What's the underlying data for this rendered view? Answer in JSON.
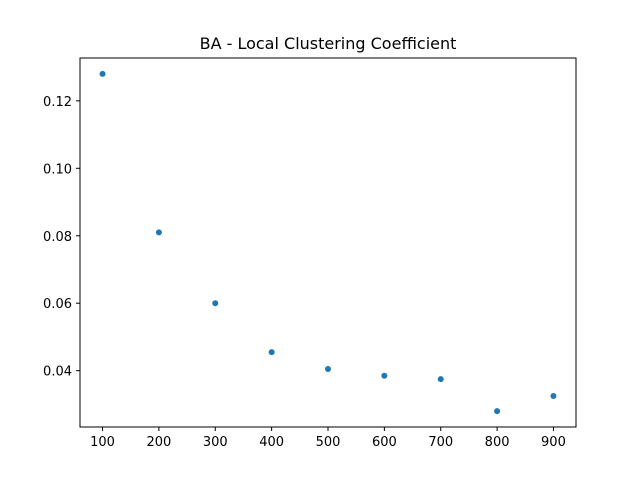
{
  "chart_data": {
    "type": "scatter",
    "title": "BA - Local Clustering Coefficient",
    "xlabel": "",
    "ylabel": "",
    "x": [
      100,
      200,
      300,
      400,
      500,
      600,
      700,
      800,
      900
    ],
    "y": [
      0.128,
      0.081,
      0.06,
      0.0455,
      0.0405,
      0.0385,
      0.0375,
      0.028,
      0.0325
    ],
    "xlim": [
      60,
      940
    ],
    "ylim": [
      0.0233,
      0.1327
    ],
    "xticks": [
      100,
      200,
      300,
      400,
      500,
      600,
      700,
      800,
      900
    ],
    "xtick_labels": [
      "100",
      "200",
      "300",
      "400",
      "500",
      "600",
      "700",
      "800",
      "900"
    ],
    "yticks": [
      0.04,
      0.06,
      0.08,
      0.1,
      0.12
    ],
    "ytick_labels": [
      "0.04",
      "0.06",
      "0.08",
      "0.10",
      "0.12"
    ],
    "grid": false,
    "legend": false,
    "marker_color": "#1f77b4"
  }
}
